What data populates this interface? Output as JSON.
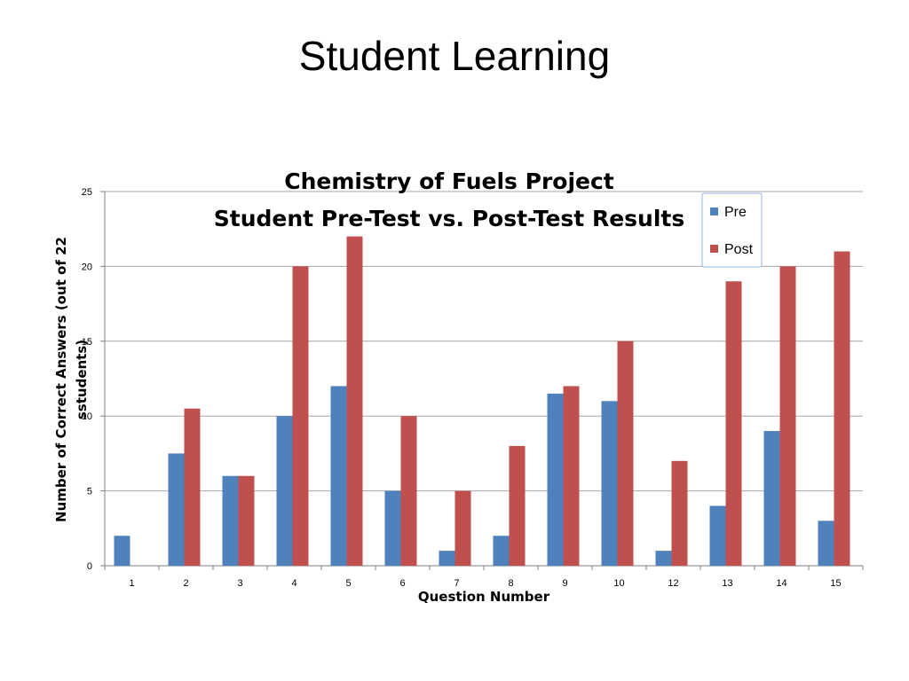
{
  "slide": {
    "title": "Student Learning"
  },
  "colors": {
    "pre": "#4F81BD",
    "post": "#C0504D",
    "grid": "#A6A6A6",
    "axis": "#7F7F7F",
    "legend_border": "#8DB4E2"
  },
  "chart_data": {
    "type": "bar",
    "title_lines": [
      "Chemistry of Fuels Project",
      "Student Pre-Test vs. Post-Test Results"
    ],
    "xlabel": "Question Number",
    "ylabel_lines": [
      "Number of Correct Answers (out of 22",
      "sstudents)"
    ],
    "ylim": [
      0,
      25
    ],
    "yticks": [
      0,
      5,
      10,
      15,
      20,
      25
    ],
    "grid": true,
    "legend_position": "top-right",
    "categories": [
      "1",
      "2",
      "3",
      "4",
      "5",
      "6",
      "7",
      "8",
      "9",
      "10",
      "12",
      "13",
      "14",
      "15"
    ],
    "series": [
      {
        "name": "Pre",
        "values": [
          2,
          7.5,
          6,
          10,
          12,
          5,
          1,
          2,
          11.5,
          11,
          1,
          4,
          9,
          3
        ]
      },
      {
        "name": "Post",
        "values": [
          0,
          10.5,
          6,
          20,
          22,
          10,
          5,
          8,
          12,
          15,
          7,
          19,
          20,
          21
        ]
      }
    ]
  }
}
